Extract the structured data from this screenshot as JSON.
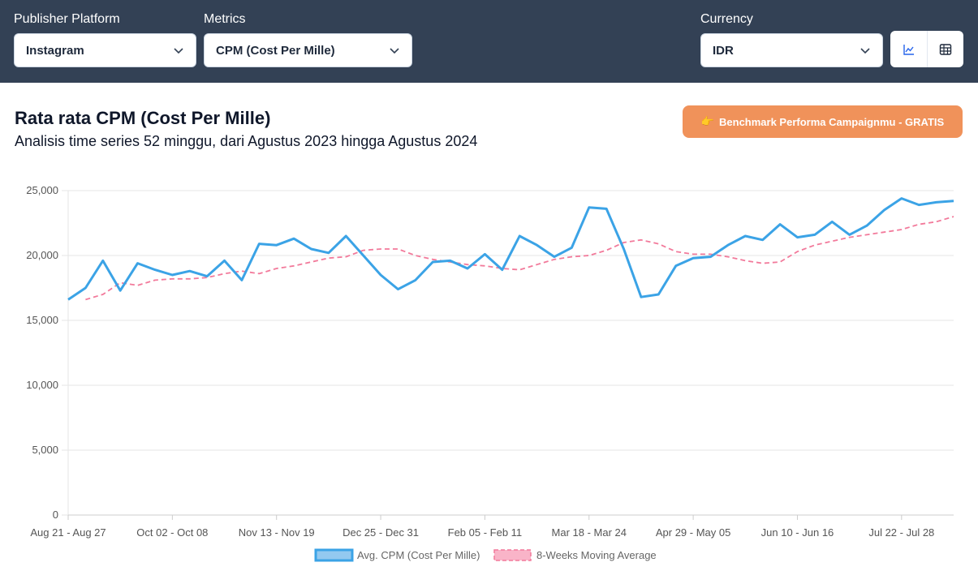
{
  "filters": {
    "publisher_label": "Publisher Platform",
    "publisher_value": "Instagram",
    "metrics_label": "Metrics",
    "metrics_value": "CPM (Cost Per Mille)",
    "currency_label": "Currency",
    "currency_value": "IDR"
  },
  "view_toggle": {
    "chart_icon": "line-chart-icon",
    "table_icon": "table-icon"
  },
  "header": {
    "title": "Rata rata CPM (Cost Per Mille)",
    "subtitle": "Analisis time series 52 minggu, dari Agustus 2023 hingga Agustus 2024",
    "benchmark_icon": "👉",
    "benchmark_label": "Benchmark Performa Campaignmu - GRATIS"
  },
  "colors": {
    "topbar": "#334155",
    "series_cpm": "#3ba3e6",
    "series_ma": "#f27a9b",
    "button": "#f0925a"
  },
  "chart_data": {
    "type": "line",
    "x_tick_labels": [
      "Aug 21 - Aug 27",
      "Oct 02 - Oct 08",
      "Nov 13 - Nov 19",
      "Dec 25 - Dec 31",
      "Feb 05 - Feb 11",
      "Mar 18 - Mar 24",
      "Apr 29 - May 05",
      "Jun 10 - Jun 16",
      "Jul 22 - Jul 28"
    ],
    "x_tick_every": 6,
    "ylim": [
      0,
      25000
    ],
    "y_ticks": [
      0,
      5000,
      10000,
      15000,
      20000,
      25000
    ],
    "y_tick_labels": [
      "0",
      "5,000",
      "10,000",
      "15,000",
      "20,000",
      "25,000"
    ],
    "grid": true,
    "legend_position": "bottom",
    "series": [
      {
        "name": "Avg. CPM (Cost Per Mille)",
        "style": "solid",
        "values": [
          16600,
          17500,
          19600,
          17300,
          19400,
          18900,
          18500,
          18800,
          18400,
          19600,
          18100,
          20900,
          20800,
          21300,
          20500,
          20200,
          21500,
          20000,
          18500,
          17400,
          18100,
          19500,
          19600,
          19000,
          20100,
          18900,
          21500,
          20800,
          19900,
          20600,
          23700,
          23600,
          20500,
          16800,
          17000,
          19200,
          19800,
          19900,
          20800,
          21500,
          21200,
          22400,
          21400,
          21600,
          22600,
          21600,
          22300,
          23500,
          24400,
          23900,
          24100,
          24200
        ]
      },
      {
        "name": "8-Weeks Moving Average",
        "style": "dashed",
        "values": [
          null,
          16600,
          17000,
          17900,
          17700,
          18100,
          18200,
          18200,
          18300,
          18600,
          18800,
          18600,
          19000,
          19200,
          19500,
          19800,
          19900,
          20400,
          20500,
          20500,
          20000,
          19700,
          19500,
          19300,
          19200,
          19000,
          18900,
          19300,
          19700,
          19900,
          20000,
          20400,
          21000,
          21200,
          20900,
          20300,
          20100,
          20100,
          19900,
          19600,
          19400,
          19500,
          20300,
          20800,
          21100,
          21400,
          21600,
          21800,
          22000,
          22400,
          22600,
          23000
        ]
      }
    ]
  }
}
